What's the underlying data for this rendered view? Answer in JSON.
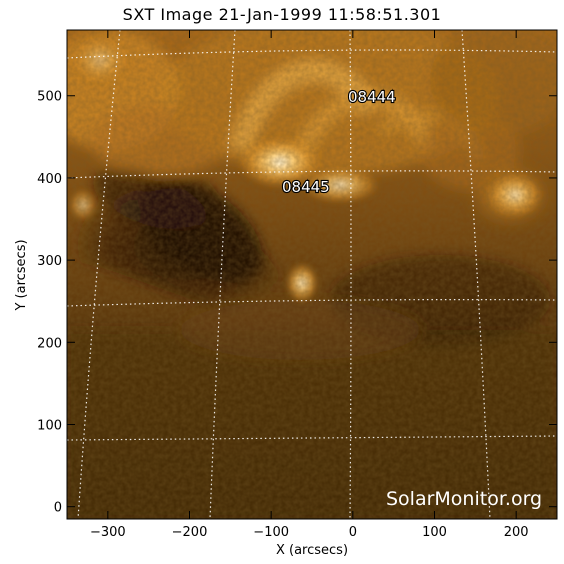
{
  "title": "SXT Image 21-Jan-1999 11:58:51.301",
  "x_axis": {
    "label": "X (arcsecs)",
    "range": [
      -350,
      250
    ],
    "ticks": [
      -300,
      -200,
      -100,
      0,
      100,
      200
    ],
    "tick_labels": [
      "−300",
      "−200",
      "−100",
      "0",
      "100",
      "200"
    ]
  },
  "y_axis": {
    "label": "Y (arcsecs)",
    "range": [
      -15,
      580
    ],
    "ticks": [
      0,
      100,
      200,
      300,
      400,
      500
    ],
    "tick_labels": [
      "0",
      "100",
      "200",
      "300",
      "400",
      "500"
    ]
  },
  "active_regions": [
    {
      "id": "08444",
      "label": "08444"
    },
    {
      "id": "08445",
      "label": "08445"
    }
  ],
  "watermark": "SolarMonitor.org",
  "colors": {
    "background": "#ffffff",
    "image_dark": "#2a1806",
    "image_mid": "#6a4210",
    "image_bright": "#f2a830",
    "grid": "#ffffff"
  }
}
